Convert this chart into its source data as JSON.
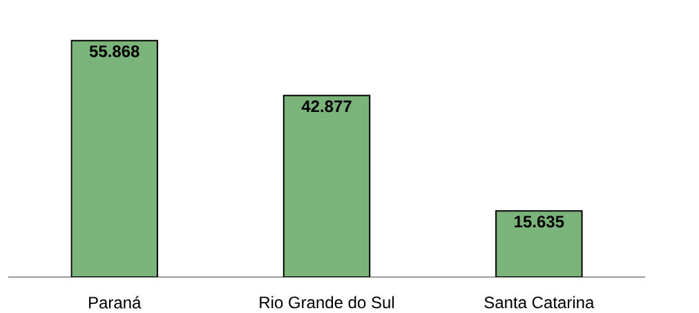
{
  "chart_data": {
    "type": "bar",
    "categories": [
      "Paraná",
      "Rio Grande do Sul",
      "Santa Catarina"
    ],
    "values": [
      55868,
      42877,
      15635
    ],
    "value_labels": [
      "55.868",
      "42.877",
      "15.635"
    ],
    "color": "#7ab47a"
  }
}
